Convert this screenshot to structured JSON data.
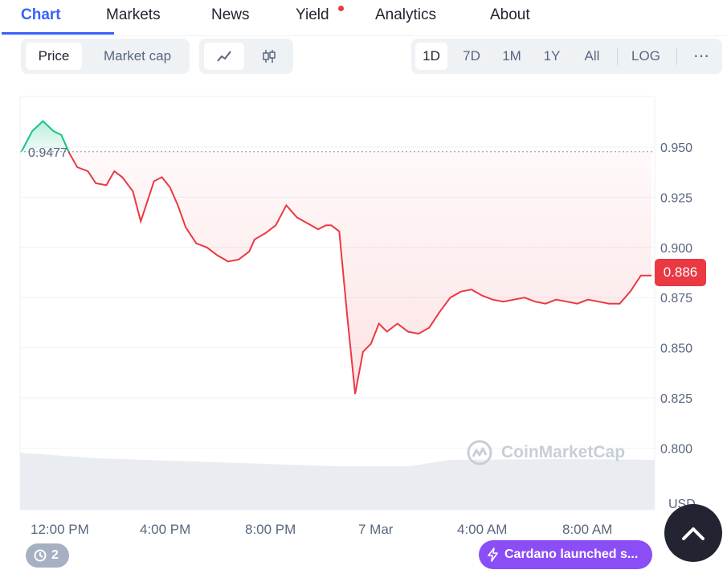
{
  "tabs": [
    {
      "label": "Chart",
      "active": true
    },
    {
      "label": "Markets",
      "active": false
    },
    {
      "label": "News",
      "active": false
    },
    {
      "label": "Yield",
      "active": false,
      "notification_dot": true
    },
    {
      "label": "Analytics",
      "active": false
    },
    {
      "label": "About",
      "active": false
    }
  ],
  "toolbar": {
    "metric_options": [
      {
        "label": "Price",
        "selected": true
      },
      {
        "label": "Market cap",
        "selected": false
      }
    ],
    "chart_types": [
      {
        "icon": "line-chart-icon",
        "selected": true
      },
      {
        "icon": "candlestick-icon",
        "selected": false
      }
    ],
    "ranges": [
      {
        "label": "1D",
        "selected": true
      },
      {
        "label": "7D",
        "selected": false
      },
      {
        "label": "1M",
        "selected": false
      },
      {
        "label": "1Y",
        "selected": false
      },
      {
        "label": "All",
        "selected": false
      }
    ],
    "log_label": "LOG",
    "more_icon": "more-horizontal-icon"
  },
  "chart": {
    "open_price_label": "0.9477",
    "current_price_label": "0.886",
    "currency_label": "USD",
    "watermark": "CoinMarketCap",
    "colors": {
      "up": "#16c784",
      "down": "#ea3943",
      "badge": "#ea3943"
    }
  },
  "chart_data": {
    "type": "line",
    "x_tick_labels": [
      "12:00 PM",
      "4:00 PM",
      "8:00 PM",
      "7 Mar",
      "4:00 AM",
      "8:00 AM"
    ],
    "y_tick_labels": [
      "0.950",
      "0.925",
      "0.900",
      "0.875",
      "0.850",
      "0.825",
      "0.800"
    ],
    "ylim": [
      0.78,
      0.975
    ],
    "baseline": 0.9477,
    "series": [
      {
        "x": [
          0,
          0.4,
          0.8,
          1.2,
          1.5,
          1.8,
          2.1,
          2.5,
          2.8,
          3.2,
          3.5,
          3.8,
          4.2,
          4.5,
          4.7,
          5.0,
          5.3,
          5.6,
          5.9,
          6.2,
          6.6,
          7.0,
          7.4,
          7.8,
          8.2,
          8.6,
          8.8,
          9.2,
          9.6,
          10.0,
          10.4,
          10.8,
          11.2,
          11.5,
          11.7,
          12.0,
          12.3,
          12.6,
          12.9,
          13.2,
          13.5,
          13.8,
          14.2,
          14.6,
          15.0,
          15.4,
          15.8,
          16.2,
          16.6,
          17.0,
          17.4,
          17.8,
          18.2,
          18.6,
          19.0,
          19.4,
          19.8,
          20.2,
          20.6,
          21.0,
          21.4,
          21.8,
          22.2,
          22.6,
          23.0,
          23.4,
          23.8
        ],
        "y": [
          0.948,
          0.958,
          0.963,
          0.958,
          0.956,
          0.947,
          0.94,
          0.938,
          0.932,
          0.931,
          0.938,
          0.935,
          0.928,
          0.913,
          0.921,
          0.933,
          0.935,
          0.93,
          0.921,
          0.91,
          0.902,
          0.9,
          0.896,
          0.893,
          0.894,
          0.898,
          0.904,
          0.907,
          0.911,
          0.921,
          0.915,
          0.912,
          0.909,
          0.911,
          0.911,
          0.908,
          0.866,
          0.827,
          0.848,
          0.852,
          0.862,
          0.858,
          0.862,
          0.858,
          0.857,
          0.86,
          0.868,
          0.875,
          0.878,
          0.879,
          0.876,
          0.874,
          0.873,
          0.874,
          0.875,
          0.873,
          0.872,
          0.874,
          0.873,
          0.872,
          0.874,
          0.873,
          0.872,
          0.872,
          0.878,
          0.886,
          0.886
        ]
      }
    ]
  },
  "badges": {
    "history_count": "2",
    "news_text": "Cardano launched s..."
  }
}
